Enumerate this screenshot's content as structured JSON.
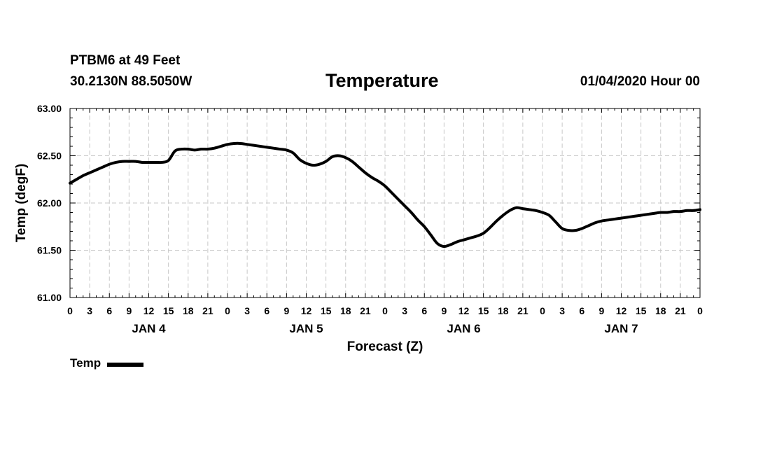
{
  "header": {
    "station": "PTBM6 at 49 Feet",
    "coords": "30.2130N 88.5050W",
    "title": "Temperature",
    "datetime": "01/04/2020 Hour 00"
  },
  "chart_data": {
    "type": "line",
    "title": "Temperature",
    "xlabel": "Forecast (Z)",
    "ylabel": "Temp (degF)",
    "ylim": [
      61.0,
      63.0
    ],
    "xlim": [
      0,
      96
    ],
    "x_unit": "hours since 01/04/2020 00Z",
    "y_ticks": [
      "61.00",
      "61.50",
      "62.00",
      "62.50",
      "63.00"
    ],
    "x_tick_labels": [
      "0",
      "3",
      "6",
      "9",
      "12",
      "15",
      "18",
      "21",
      "0",
      "3",
      "6",
      "9",
      "12",
      "15",
      "18",
      "21",
      "0",
      "3",
      "6",
      "9",
      "12",
      "15",
      "18",
      "21",
      "0",
      "3",
      "6",
      "9",
      "12",
      "15",
      "18",
      "21",
      "0"
    ],
    "day_labels": [
      {
        "label": "JAN 4",
        "hour": 12
      },
      {
        "label": "JAN 5",
        "hour": 36
      },
      {
        "label": "JAN 6",
        "hour": 60
      },
      {
        "label": "JAN 7",
        "hour": 84
      }
    ],
    "grid": true,
    "legend": "bottom-left",
    "color": "#000000",
    "series": [
      {
        "name": "Temp",
        "x": [
          0,
          1,
          2,
          3,
          4,
          5,
          6,
          7,
          8,
          9,
          10,
          11,
          12,
          13,
          14,
          15,
          16,
          17,
          18,
          19,
          20,
          21,
          22,
          23,
          24,
          25,
          26,
          27,
          28,
          29,
          30,
          31,
          32,
          33,
          34,
          35,
          36,
          37,
          38,
          39,
          40,
          41,
          42,
          43,
          44,
          45,
          46,
          47,
          48,
          49,
          50,
          51,
          52,
          53,
          54,
          55,
          56,
          57,
          58,
          59,
          60,
          61,
          62,
          63,
          64,
          65,
          66,
          67,
          68,
          69,
          70,
          71,
          72,
          73,
          74,
          75,
          76,
          77,
          78,
          79,
          80,
          81,
          82,
          83,
          84,
          85,
          86,
          87,
          88,
          89,
          90,
          91,
          92,
          93,
          94,
          95,
          96
        ],
        "values": [
          62.21,
          62.25,
          62.29,
          62.32,
          62.35,
          62.38,
          62.41,
          62.43,
          62.44,
          62.44,
          62.44,
          62.43,
          62.43,
          62.43,
          62.43,
          62.45,
          62.55,
          62.57,
          62.57,
          62.56,
          62.57,
          62.57,
          62.58,
          62.6,
          62.62,
          62.63,
          62.63,
          62.62,
          62.61,
          62.6,
          62.59,
          62.58,
          62.57,
          62.56,
          62.53,
          62.46,
          62.42,
          62.4,
          62.41,
          62.44,
          62.49,
          62.5,
          62.48,
          62.44,
          62.38,
          62.32,
          62.27,
          62.23,
          62.18,
          62.11,
          62.04,
          61.97,
          61.9,
          61.82,
          61.75,
          61.66,
          61.57,
          61.54,
          61.56,
          61.59,
          61.61,
          61.63,
          61.65,
          61.68,
          61.74,
          61.81,
          61.87,
          61.92,
          61.95,
          61.94,
          61.93,
          61.92,
          61.9,
          61.87,
          61.8,
          61.73,
          61.71,
          61.71,
          61.73,
          61.76,
          61.79,
          61.81,
          61.82,
          61.83,
          61.84,
          61.85,
          61.86,
          61.87,
          61.88,
          61.89,
          61.9,
          61.9,
          61.91,
          61.91,
          61.92,
          61.92,
          61.93
        ]
      }
    ]
  },
  "legend": {
    "label": "Temp"
  }
}
